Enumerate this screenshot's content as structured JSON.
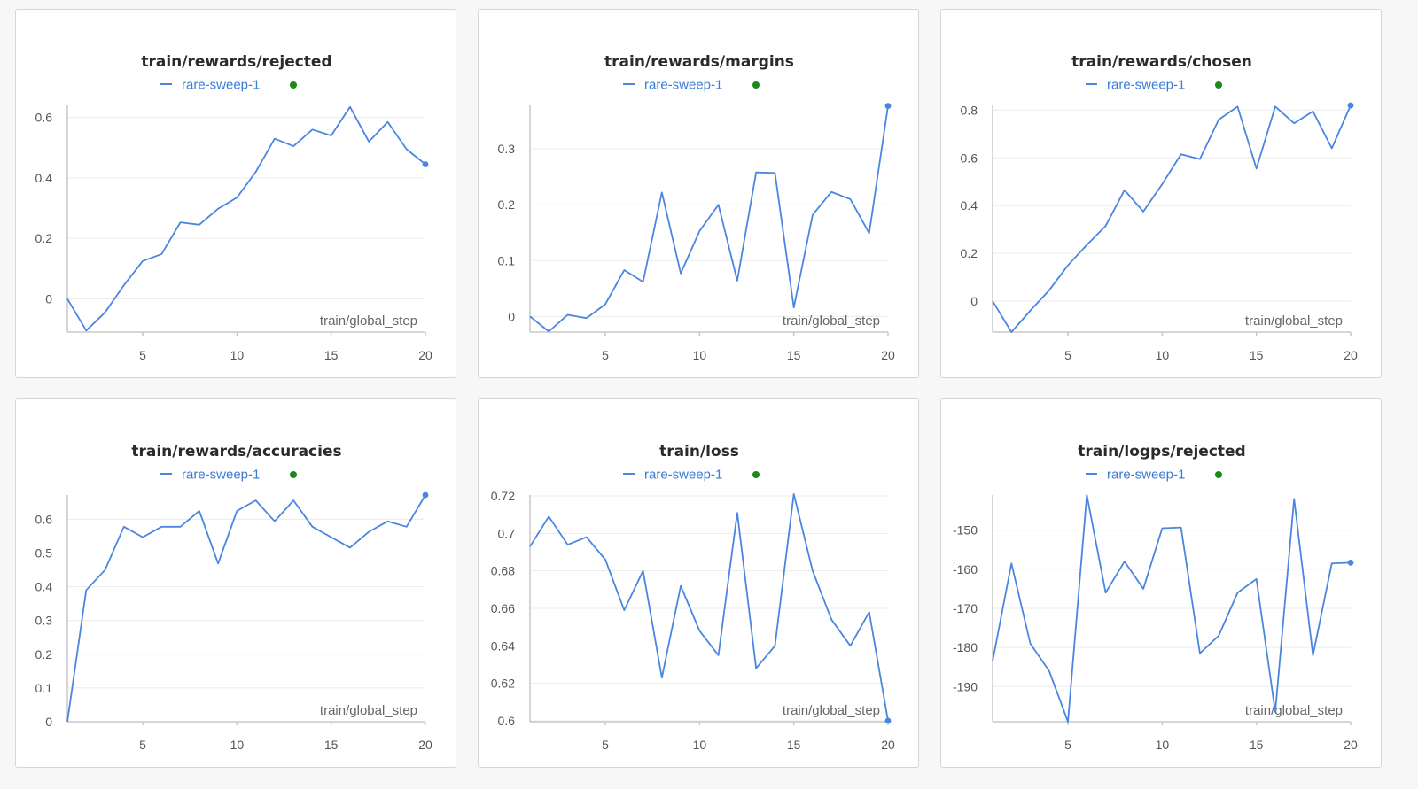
{
  "colors": {
    "series": "#4a86e0",
    "legend_text": "#3a7bd5",
    "status_dot": "#1a8a1a",
    "grid": "#ebebeb",
    "axis": "#c8c8c8"
  },
  "chart_data": [
    {
      "type": "line",
      "title": "train/rewards/rejected",
      "xlabel": "train/global_step",
      "ylabel": "",
      "legend": [
        "rare-sweep-1"
      ],
      "xlim": [
        1,
        20
      ],
      "ylim": [
        -0.11,
        0.64
      ],
      "xticks": [
        5,
        10,
        15,
        20
      ],
      "yticks": [
        0,
        0.2,
        0.4,
        0.6
      ],
      "ytick_labels": [
        "0",
        "0.2",
        "0.4",
        "0.6"
      ],
      "grid": true,
      "series": [
        {
          "name": "rare-sweep-1",
          "x": [
            1,
            2,
            3,
            4,
            5,
            6,
            7,
            8,
            9,
            10,
            11,
            12,
            13,
            14,
            15,
            16,
            17,
            18,
            19,
            20
          ],
          "y": [
            0.0,
            -0.105,
            -0.045,
            0.045,
            0.125,
            0.148,
            0.253,
            0.245,
            0.298,
            0.335,
            0.42,
            0.53,
            0.505,
            0.56,
            0.54,
            0.635,
            0.52,
            0.585,
            0.495,
            0.445
          ]
        }
      ]
    },
    {
      "type": "line",
      "title": "train/rewards/margins",
      "xlabel": "train/global_step",
      "ylabel": "",
      "legend": [
        "rare-sweep-1"
      ],
      "xlim": [
        1,
        20
      ],
      "ylim": [
        -0.028,
        0.378
      ],
      "xticks": [
        5,
        10,
        15,
        20
      ],
      "yticks": [
        0,
        0.1,
        0.2,
        0.3
      ],
      "ytick_labels": [
        "0",
        "0.1",
        "0.2",
        "0.3"
      ],
      "grid": true,
      "series": [
        {
          "name": "rare-sweep-1",
          "x": [
            1,
            2,
            3,
            4,
            5,
            6,
            7,
            8,
            9,
            10,
            11,
            12,
            13,
            14,
            15,
            16,
            17,
            18,
            19,
            20
          ],
          "y": [
            0.0,
            -0.027,
            0.003,
            -0.003,
            0.022,
            0.083,
            0.062,
            0.222,
            0.077,
            0.153,
            0.2,
            0.064,
            0.258,
            0.257,
            0.016,
            0.182,
            0.223,
            0.21,
            0.149,
            0.377
          ]
        }
      ]
    },
    {
      "type": "line",
      "title": "train/rewards/chosen",
      "xlabel": "train/global_step",
      "ylabel": "",
      "legend": [
        "rare-sweep-1"
      ],
      "xlim": [
        1,
        20
      ],
      "ylim": [
        -0.13,
        0.82
      ],
      "xticks": [
        5,
        10,
        15,
        20
      ],
      "yticks": [
        0,
        0.2,
        0.4,
        0.6,
        0.8
      ],
      "ytick_labels": [
        "0",
        "0.2",
        "0.4",
        "0.6",
        "0.8"
      ],
      "grid": true,
      "series": [
        {
          "name": "rare-sweep-1",
          "x": [
            1,
            2,
            3,
            4,
            5,
            6,
            7,
            8,
            9,
            10,
            11,
            12,
            13,
            14,
            15,
            16,
            17,
            18,
            19,
            20
          ],
          "y": [
            0.0,
            -0.13,
            -0.04,
            0.045,
            0.15,
            0.235,
            0.315,
            0.465,
            0.375,
            0.49,
            0.615,
            0.595,
            0.76,
            0.815,
            0.555,
            0.815,
            0.745,
            0.795,
            0.64,
            0.82
          ]
        }
      ]
    },
    {
      "type": "line",
      "title": "train/rewards/accuracies",
      "xlabel": "train/global_step",
      "ylabel": "",
      "legend": [
        "rare-sweep-1"
      ],
      "xlim": [
        1,
        20
      ],
      "ylim": [
        0,
        0.672
      ],
      "xticks": [
        5,
        10,
        15,
        20
      ],
      "yticks": [
        0,
        0.1,
        0.2,
        0.3,
        0.4,
        0.5,
        0.6
      ],
      "ytick_labels": [
        "0",
        "0.1",
        "0.2",
        "0.3",
        "0.4",
        "0.5",
        "0.6"
      ],
      "grid": true,
      "series": [
        {
          "name": "rare-sweep-1",
          "x": [
            1,
            2,
            3,
            4,
            5,
            6,
            7,
            8,
            9,
            10,
            11,
            12,
            13,
            14,
            15,
            16,
            17,
            18,
            19,
            20
          ],
          "y": [
            0.0,
            0.39,
            0.45,
            0.578,
            0.547,
            0.578,
            0.578,
            0.625,
            0.469,
            0.625,
            0.656,
            0.594,
            0.656,
            0.578,
            0.547,
            0.516,
            0.563,
            0.594,
            0.578,
            0.672
          ]
        }
      ]
    },
    {
      "type": "line",
      "title": "train/loss",
      "xlabel": "train/global_step",
      "ylabel": "",
      "legend": [
        "rare-sweep-1"
      ],
      "xlim": [
        1,
        20
      ],
      "ylim": [
        0.5995,
        0.7205
      ],
      "xticks": [
        5,
        10,
        15,
        20
      ],
      "yticks": [
        0.6,
        0.62,
        0.64,
        0.66,
        0.68,
        0.7,
        0.72
      ],
      "ytick_labels": [
        "0.6",
        "0.62",
        "0.64",
        "0.66",
        "0.68",
        "0.7",
        "0.72"
      ],
      "grid": true,
      "series": [
        {
          "name": "rare-sweep-1",
          "x": [
            1,
            2,
            3,
            4,
            5,
            6,
            7,
            8,
            9,
            10,
            11,
            12,
            13,
            14,
            15,
            16,
            17,
            18,
            19,
            20
          ],
          "y": [
            0.693,
            0.709,
            0.694,
            0.698,
            0.686,
            0.659,
            0.68,
            0.623,
            0.672,
            0.648,
            0.635,
            0.711,
            0.628,
            0.64,
            0.721,
            0.68,
            0.654,
            0.64,
            0.658,
            0.6
          ]
        }
      ]
    },
    {
      "type": "line",
      "title": "train/logps/rejected",
      "xlabel": "train/global_step",
      "ylabel": "",
      "legend": [
        "rare-sweep-1"
      ],
      "xlim": [
        1,
        20
      ],
      "ylim": [
        -199,
        -141
      ],
      "xticks": [
        5,
        10,
        15,
        20
      ],
      "yticks": [
        -190,
        -180,
        -170,
        -160,
        -150
      ],
      "ytick_labels": [
        "-190",
        "-180",
        "-170",
        "-160",
        "-150"
      ],
      "grid": true,
      "series": [
        {
          "name": "rare-sweep-1",
          "x": [
            1,
            2,
            3,
            4,
            5,
            6,
            7,
            8,
            9,
            10,
            11,
            12,
            13,
            14,
            15,
            16,
            17,
            18,
            19,
            20
          ],
          "y": [
            -183.5,
            -158.5,
            -179,
            -186,
            -199,
            -141,
            -166,
            -158,
            -165,
            -149.5,
            -149.3,
            -181.5,
            -177,
            -166,
            -162.5,
            -196.5,
            -142,
            -182,
            -158.5,
            -158.3
          ]
        }
      ]
    }
  ]
}
